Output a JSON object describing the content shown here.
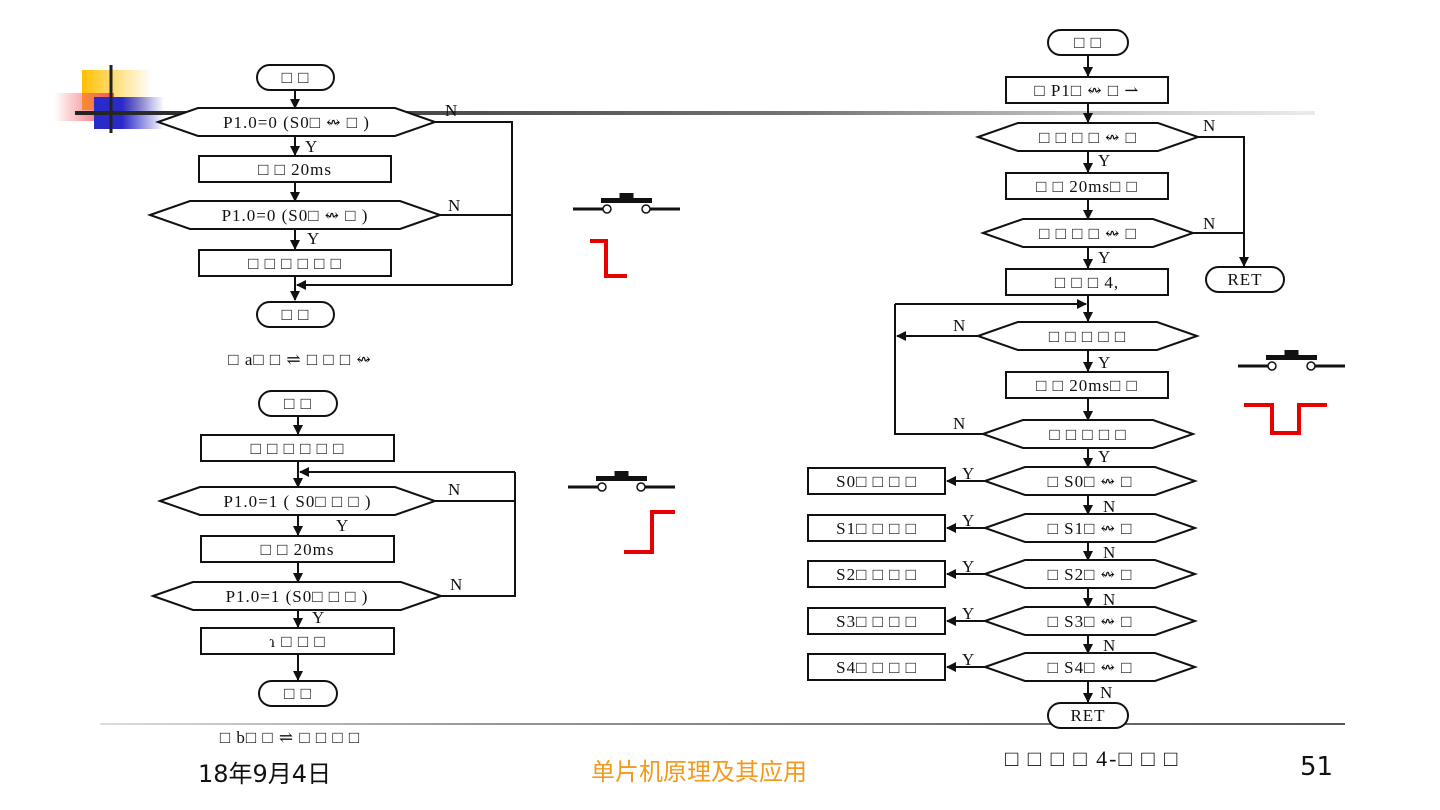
{
  "colors": {
    "accent_orange": "#F39A1E",
    "waveform_red": "#E60000",
    "logo_yellow": "#FFC000",
    "logo_red": "#F0505A",
    "logo_blue": "#2A2AC8"
  },
  "labels": {
    "yes": "Y",
    "no": "N"
  },
  "flow_a": {
    "start": "□ □",
    "check1": "P1.0=0 (S0□ ↭ □ )",
    "delay": "□ □  20ms",
    "check2": "P1.0=0 (S0□ ↭ □ )",
    "process": "□ □ □ □ □ □",
    "end": "□ □",
    "caption": "□ a□ □ ⇌ □ □ □ ↭"
  },
  "flow_b": {
    "start": "□ □",
    "init": "□ □ □ □ □ □",
    "check1": "P1.0=1 (  S0□ □ □ )",
    "delay": "□ □ 20ms",
    "check2": "P1.0=1 (S0□ □ □ )",
    "process": "ɿ □ □ □",
    "end": "□ □",
    "caption": "□ b□ □ ⇌ □ □ □ □"
  },
  "flow_c": {
    "start": "□ □",
    "read": "□ P1□ ↭ □ ⇀",
    "check1": "□ □ □ □ ↭ □",
    "delay1": "□ □ 20ms□ □",
    "check2": "□ □ □ □ ↭ □",
    "count": "□ □ □ 4,",
    "ret1": "RET",
    "check3": "□ □ □ □ □",
    "delay2": "□ □ 20ms□ □",
    "check4": "□ □ □ □ □",
    "key_checks": [
      "□ S0□ ↭ □",
      "□ S1□ ↭ □",
      "□ S2□ ↭ □",
      "□ S3□ ↭ □",
      "□ S4□ ↭ □"
    ],
    "key_handlers": [
      "S0□ □ □ □",
      "S1□ □ □ □",
      "S2□ □ □ □",
      "S3□ □ □ □",
      "S4□ □ □ □"
    ],
    "ret2": "RET"
  },
  "footer": {
    "date": "18年9月4日",
    "course": "单片机原理及其应用",
    "caption_c": "□ □ □ □ 4-□ □ □",
    "page": "51"
  }
}
